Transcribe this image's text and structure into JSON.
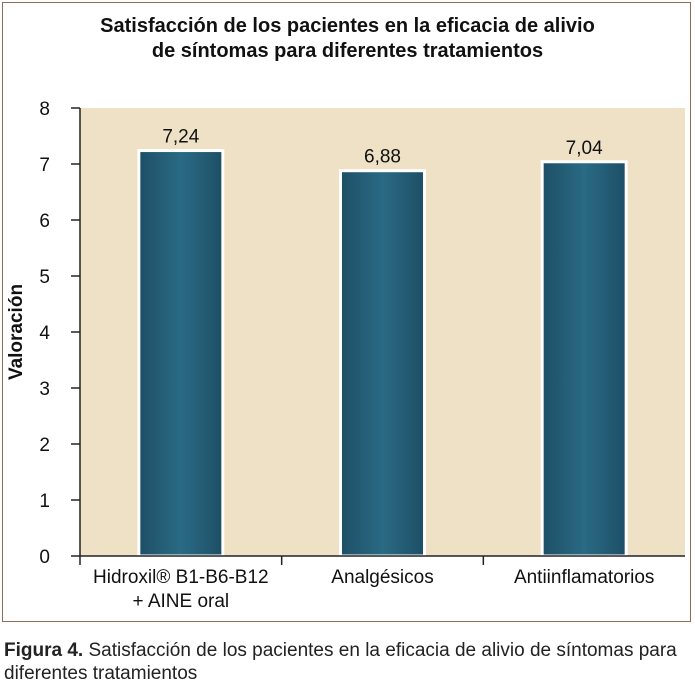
{
  "title_lines": [
    "Satisfacción de los pacientes en la eficacia de alivio",
    "de síntomas para diferentes tratamientos"
  ],
  "caption": {
    "label": "Figura 4.",
    "text": " Satisfacción de los pacientes en la eficacia de alivio de síntomas para diferentes tratamientos"
  },
  "colors": {
    "plot_background": "#efe1c6",
    "bar_fill": "#2a6a84",
    "bar_dark": "#1d4f66",
    "bar_border": "#ffffff",
    "axis": "#222222",
    "frame": "#8c6d52"
  },
  "chart_data": {
    "type": "bar",
    "title": "Satisfacción de los pacientes en la eficacia de alivio de síntomas para diferentes tratamientos",
    "xlabel": "",
    "ylabel": "Valoración",
    "ylim": [
      0,
      8
    ],
    "yticks": [
      "0",
      "1",
      "2",
      "3",
      "4",
      "5",
      "6",
      "7",
      "8"
    ],
    "categories": [
      [
        "Hidroxil® B1-B6-B12",
        "+ AINE oral"
      ],
      [
        "Analgésicos"
      ],
      [
        "Antiinflamatorios"
      ]
    ],
    "values": [
      7.24,
      6.88,
      7.04
    ],
    "value_labels": [
      "7,24",
      "6,88",
      "7,04"
    ],
    "grid": false,
    "legend": "none"
  }
}
